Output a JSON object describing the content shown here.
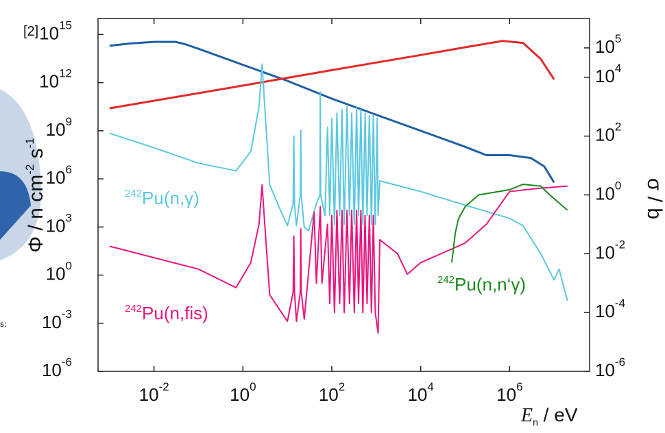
{
  "chart_data": {
    "type": "line",
    "x_log": true,
    "y_log": true,
    "y2_log": true,
    "note": "[2]",
    "side_text": "s:",
    "xlabel": [
      "E",
      "n",
      " / eV"
    ],
    "ylabel": [
      "Φ / n cm",
      "-2",
      " s",
      "-1"
    ],
    "y2label": "σ / b",
    "xlim": [
      0.00055,
      63000000
    ],
    "ylim": [
      1e-06,
      10000000000000000
    ],
    "y2lim": [
      1e-06,
      1000000
    ],
    "xticks": [
      {
        "value": 0.01,
        "label": "10",
        "exponent": "-2"
      },
      {
        "value": 1,
        "label": "10",
        "exponent": "0"
      },
      {
        "value": 100,
        "label": "10",
        "exponent": "2"
      },
      {
        "value": 10000,
        "label": "10",
        "exponent": "4"
      },
      {
        "value": 1000000,
        "label": "10",
        "exponent": "6"
      }
    ],
    "yticks": [
      {
        "value": 1e-06,
        "label": "10",
        "exponent": "-6"
      },
      {
        "value": 0.001,
        "label": "10",
        "exponent": "-3"
      },
      {
        "value": 1,
        "label": "10",
        "exponent": "0"
      },
      {
        "value": 1000,
        "label": "10",
        "exponent": "3"
      },
      {
        "value": 1000000,
        "label": "10",
        "exponent": "6"
      },
      {
        "value": 1000000000,
        "label": "10",
        "exponent": "9"
      },
      {
        "value": 1000000000000,
        "label": "10",
        "exponent": "12"
      },
      {
        "value": 1000000000000000,
        "label": "10",
        "exponent": "15"
      }
    ],
    "y2ticks": [
      {
        "value": 1e-06,
        "label": "10",
        "exponent": "-6"
      },
      {
        "value": 0.0001,
        "label": "10",
        "exponent": "-4"
      },
      {
        "value": 0.01,
        "label": "10",
        "exponent": "-2"
      },
      {
        "value": 1,
        "label": "10",
        "exponent": "0"
      },
      {
        "value": 100,
        "label": "10",
        "exponent": "2"
      },
      {
        "value": 10000,
        "label": "10",
        "exponent": "4"
      },
      {
        "value": 100000,
        "label": "10",
        "exponent": "5"
      }
    ],
    "annotations": [
      {
        "sup": "242",
        "text": "Pu(n,γ)",
        "color": "#5bc8e0"
      },
      {
        "sup": "242",
        "text": "Pu(n,fis)",
        "color": "#e8167f"
      },
      {
        "sup": "242",
        "text": "Pu(n,n‘γ)",
        "color": "#1a8a1a"
      }
    ],
    "series": [
      {
        "color": "#1f5fa5",
        "axis": "y",
        "x": [
          0.001,
          0.003,
          0.01,
          0.03,
          0.05,
          0.1,
          1,
          10,
          100,
          1000,
          10000,
          100000,
          300000,
          1000000,
          3000000,
          6000000,
          10000000
        ],
        "values": [
          200000000000000,
          280000000000000,
          350000000000000,
          350000000000000,
          250000000000000,
          130000000000000,
          13000000000000,
          1300000000000,
          100000000000,
          10000000000,
          1000000000,
          100000000,
          30000000,
          30000000,
          20000000,
          6000000,
          600000
        ]
      },
      {
        "color": "#e02a2a",
        "axis": "y",
        "x": [
          0.001,
          0.01,
          0.1,
          1,
          10,
          100,
          1000,
          10000,
          100000,
          700000,
          2000000,
          5000000,
          10000000
        ],
        "values": [
          25000000000,
          75000000000,
          220000000000,
          660000000000,
          2000000000000,
          6000000000000,
          18000000000000,
          53000000000000,
          160000000000000,
          400000000000000,
          300000000000000,
          30000000000000,
          1600000000000
        ]
      },
      {
        "color": "#5bc8e0",
        "axis": "y2",
        "x": [
          0.001,
          0.01,
          0.1,
          0.7,
          1.5,
          2.3,
          2.7,
          3.1,
          4,
          7,
          10,
          13.5,
          14,
          14.5,
          16,
          19.5,
          20,
          20.5,
          24,
          30,
          45,
          54,
          55,
          56,
          70,
          80,
          90,
          100,
          115,
          130,
          150,
          170,
          190,
          220,
          250,
          280,
          320,
          360,
          400,
          450,
          500,
          560,
          620,
          700,
          780,
          860,
          950,
          1050,
          1100,
          1200,
          10000,
          100000,
          1000000,
          2000000,
          5000000,
          10000000,
          13000000,
          20000000
        ],
        "values": [
          126,
          40,
          12,
          6.6,
          30,
          1000,
          28000,
          1000,
          2.2,
          0.3,
          0.09,
          0.5,
          100,
          0.5,
          0.09,
          1,
          160,
          1,
          0.08,
          0.06,
          0.5,
          1,
          3200,
          1,
          0.2,
          200,
          0.2,
          400,
          0.1,
          600,
          0.2,
          800,
          0.1,
          1000,
          0.2,
          600,
          0.1,
          1000,
          0.2,
          800,
          0.1,
          600,
          0.2,
          500,
          0.1,
          500,
          0.1,
          400,
          0.2,
          3,
          1.3,
          0.45,
          0.16,
          0.09,
          0.01,
          0.0013,
          0.003,
          0.00025
        ]
      },
      {
        "color": "#e8167f",
        "axis": "y2",
        "x": [
          0.001,
          0.1,
          0.7,
          1.5,
          2.3,
          2.7,
          3.1,
          4,
          10,
          13.5,
          14,
          14.5,
          16,
          19.5,
          20,
          20.5,
          24,
          40,
          45,
          55,
          60,
          80,
          90,
          100,
          115,
          130,
          150,
          170,
          190,
          220,
          250,
          280,
          320,
          360,
          400,
          450,
          500,
          560,
          620,
          700,
          780,
          860,
          950,
          1100,
          1200,
          3000,
          5000,
          10000,
          100000,
          300000,
          1000000,
          5000000,
          20000000
        ],
        "values": [
          0.018,
          0.003,
          0.0007,
          0.005,
          0.1,
          2.2,
          0.1,
          0.0004,
          5e-05,
          0.0005,
          0.04,
          0.0005,
          5e-05,
          0.0005,
          0.07,
          0.0005,
          6e-05,
          0.26,
          0.001,
          0.4,
          0.001,
          0.1,
          0.0002,
          0.2,
          0.0001,
          0.3,
          0.0002,
          0.3,
          0.0001,
          0.3,
          0.0002,
          0.3,
          0.0001,
          0.3,
          0.0002,
          0.3,
          0.0001,
          0.2,
          0.0002,
          0.2,
          0.0001,
          0.2,
          0.0001,
          2e-05,
          0.03,
          0.01,
          0.002,
          0.005,
          0.023,
          0.1,
          1.3,
          1.7,
          2
        ]
      },
      {
        "color": "#1a8a1a",
        "axis": "y2",
        "x": [
          50000,
          60000,
          70000,
          100000,
          200000,
          1000000,
          2000000,
          5000000,
          8000000,
          20000000
        ],
        "values": [
          0.005,
          0.05,
          0.15,
          0.4,
          1,
          1.5,
          2.3,
          2,
          1,
          0.3
        ]
      }
    ]
  }
}
